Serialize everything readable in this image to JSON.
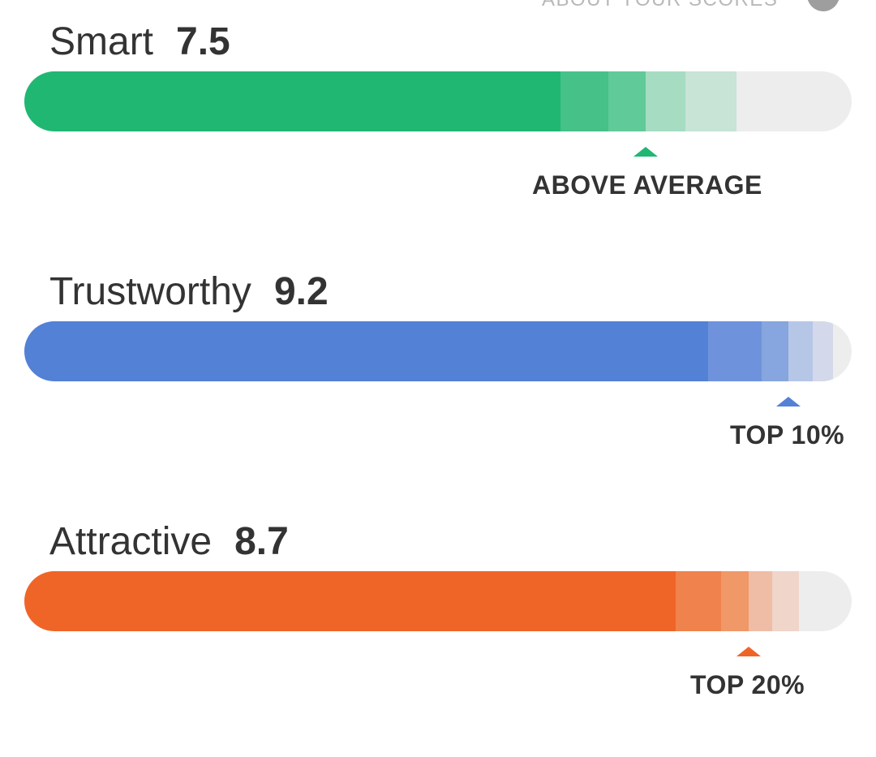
{
  "header": {
    "about_label": "ABOUT YOUR SCORES",
    "info_icon": "info-icon"
  },
  "metrics": [
    {
      "label": "Smart",
      "score": "7.5",
      "rank": "ABOVE AVERAGE",
      "color": "#20b773",
      "segment_colors": [
        "#20b773",
        "#46c188",
        "#61ca99",
        "#a5dcc2",
        "#c7e4d6"
      ]
    },
    {
      "label": "Trustworthy",
      "score": "9.2",
      "rank": "TOP 10%",
      "color": "#5281d6",
      "segment_colors": [
        "#5281d6",
        "#6e93dc",
        "#87a5de",
        "#b6c6e7",
        "#d3d9ea"
      ]
    },
    {
      "label": "Attractive",
      "score": "8.7",
      "rank": "TOP 20%",
      "color": "#ef6528",
      "segment_colors": [
        "#ef6528",
        "#ef824d",
        "#f09867",
        "#efbda5",
        "#efd5ca"
      ]
    }
  ]
}
